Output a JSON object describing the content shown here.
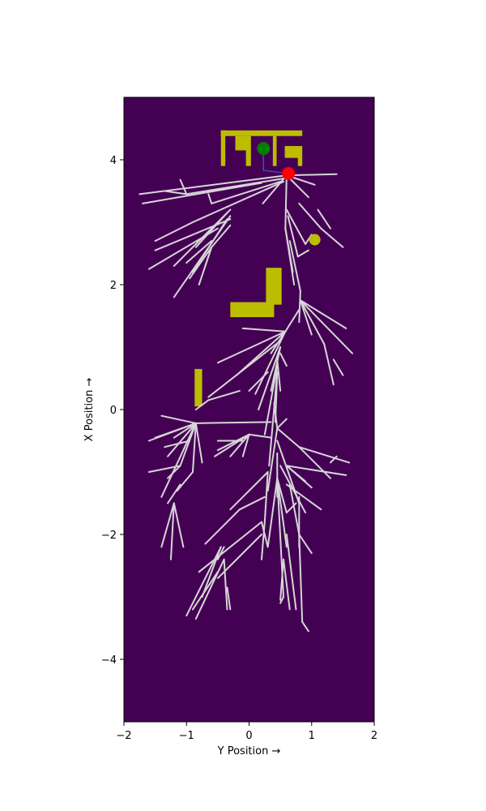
{
  "chart_data": {
    "type": "scatter",
    "title": "",
    "xlabel": "Y Position →",
    "ylabel": "X Position →",
    "xlim": [
      -2,
      2
    ],
    "ylim": [
      -5,
      5
    ],
    "xticks": [
      -2,
      -1,
      0,
      1,
      2
    ],
    "yticks": [
      -4,
      -2,
      0,
      2,
      4
    ],
    "xtick_labels": [
      "−2",
      "−1",
      "0",
      "1",
      "2"
    ],
    "ytick_labels": [
      "−4",
      "−2",
      "0",
      "2",
      "4"
    ],
    "grid": false,
    "legend": "none",
    "colors": {
      "background": "#440154",
      "obstacle": "#bdbd00",
      "tree_edge": "#d6d6d6",
      "path": "#3b4cc0",
      "start": "#008000",
      "goal": "#ff0000",
      "probe": "#bdbd00"
    },
    "obstacles": [
      {
        "x0": -0.45,
        "x1": 0.85,
        "y0": 4.38,
        "y1": 4.47
      },
      {
        "x0": -0.45,
        "x1": -0.38,
        "y0": 3.9,
        "y1": 4.47
      },
      {
        "x0": -0.22,
        "x1": -0.03,
        "y0": 4.15,
        "y1": 4.38
      },
      {
        "x0": -0.05,
        "x1": 0.03,
        "y0": 3.9,
        "y1": 4.38
      },
      {
        "x0": 0.38,
        "x1": 0.44,
        "y0": 3.9,
        "y1": 4.38
      },
      {
        "x0": 0.57,
        "x1": 0.8,
        "y0": 4.03,
        "y1": 4.22
      },
      {
        "x0": 0.78,
        "x1": 0.85,
        "y0": 3.9,
        "y1": 4.22
      },
      {
        "x0": 0.27,
        "x1": 0.52,
        "y0": 1.68,
        "y1": 2.27
      },
      {
        "x0": -0.3,
        "x1": 0.4,
        "y0": 1.48,
        "y1": 1.72
      },
      {
        "x0": -0.87,
        "x1": -0.75,
        "y0": 0.05,
        "y1": 0.65
      }
    ],
    "start": {
      "x": 0.23,
      "y": 4.18
    },
    "goal": {
      "x": 0.63,
      "y": 3.78
    },
    "probe": {
      "x": 1.05,
      "y": 2.72
    },
    "path": [
      [
        0.23,
        4.18
      ],
      [
        0.23,
        3.83
      ],
      [
        0.63,
        3.78
      ]
    ],
    "tree_edges": [
      [
        [
          0.6,
          3.75
        ],
        [
          1.4,
          3.77
        ]
      ],
      [
        [
          0.6,
          3.75
        ],
        [
          1.05,
          3.6
        ]
      ],
      [
        [
          0.6,
          3.75
        ],
        [
          0.95,
          3.4
        ]
      ],
      [
        [
          0.6,
          3.75
        ],
        [
          0.22,
          3.3
        ]
      ],
      [
        [
          0.6,
          3.75
        ],
        [
          -1.75,
          3.45
        ]
      ],
      [
        [
          0.2,
          3.63
        ],
        [
          -1.7,
          3.3
        ]
      ],
      [
        [
          0.55,
          3.7
        ],
        [
          -1.0,
          3.45
        ]
      ],
      [
        [
          -1.0,
          3.45
        ],
        [
          -1.1,
          3.68
        ]
      ],
      [
        [
          -1.0,
          3.45
        ],
        [
          -1.35,
          3.5
        ]
      ],
      [
        [
          0.5,
          3.65
        ],
        [
          -0.6,
          3.3
        ]
      ],
      [
        [
          -0.6,
          3.3
        ],
        [
          -0.65,
          3.45
        ]
      ],
      [
        [
          0.55,
          3.65
        ],
        [
          -0.9,
          3.0
        ]
      ],
      [
        [
          -0.9,
          3.0
        ],
        [
          -1.5,
          2.7
        ]
      ],
      [
        [
          -0.3,
          3.05
        ],
        [
          -1.5,
          2.55
        ]
      ],
      [
        [
          -0.5,
          2.9
        ],
        [
          -1.6,
          2.25
        ]
      ],
      [
        [
          -0.3,
          3.2
        ],
        [
          -1.2,
          2.3
        ]
      ],
      [
        [
          -0.3,
          3.1
        ],
        [
          -1.2,
          1.8
        ]
      ],
      [
        [
          -0.6,
          2.7
        ],
        [
          -1.0,
          2.35
        ]
      ],
      [
        [
          -0.35,
          3.05
        ],
        [
          -0.9,
          2.2
        ]
      ],
      [
        [
          -0.3,
          2.95
        ],
        [
          -0.6,
          2.6
        ]
      ],
      [
        [
          -0.6,
          2.6
        ],
        [
          -0.95,
          2.1
        ]
      ],
      [
        [
          -0.6,
          2.6
        ],
        [
          -0.7,
          2.3
        ]
      ],
      [
        [
          -0.6,
          2.6
        ],
        [
          -0.8,
          2.0
        ]
      ],
      [
        [
          -0.35,
          3.15
        ],
        [
          -0.85,
          2.6
        ]
      ],
      [
        [
          0.6,
          3.75
        ],
        [
          0.58,
          2.9
        ]
      ],
      [
        [
          0.58,
          2.9
        ],
        [
          0.7,
          2.2
        ]
      ],
      [
        [
          0.58,
          2.9
        ],
        [
          0.72,
          2.0
        ]
      ],
      [
        [
          0.6,
          3.2
        ],
        [
          0.9,
          2.65
        ]
      ],
      [
        [
          0.9,
          2.65
        ],
        [
          1.0,
          2.8
        ]
      ],
      [
        [
          0.62,
          3.1
        ],
        [
          0.78,
          2.45
        ]
      ],
      [
        [
          0.78,
          2.45
        ],
        [
          0.95,
          2.55
        ]
      ],
      [
        [
          0.8,
          3.3
        ],
        [
          1.15,
          2.9
        ]
      ],
      [
        [
          1.15,
          2.9
        ],
        [
          1.5,
          2.6
        ]
      ],
      [
        [
          1.1,
          3.2
        ],
        [
          1.3,
          2.9
        ]
      ],
      [
        [
          0.65,
          2.7
        ],
        [
          0.82,
          1.9
        ]
      ],
      [
        [
          0.82,
          1.9
        ],
        [
          0.8,
          1.4
        ]
      ],
      [
        [
          0.82,
          1.75
        ],
        [
          1.55,
          1.3
        ]
      ],
      [
        [
          0.82,
          1.75
        ],
        [
          1.0,
          1.2
        ]
      ],
      [
        [
          0.82,
          1.75
        ],
        [
          1.2,
          1.05
        ]
      ],
      [
        [
          0.82,
          1.75
        ],
        [
          1.65,
          0.9
        ]
      ],
      [
        [
          1.2,
          1.05
        ],
        [
          1.35,
          0.4
        ]
      ],
      [
        [
          1.35,
          0.8
        ],
        [
          1.5,
          0.55
        ]
      ],
      [
        [
          0.8,
          1.6
        ],
        [
          0.58,
          1.25
        ]
      ],
      [
        [
          0.58,
          1.25
        ],
        [
          -0.1,
          1.3
        ]
      ],
      [
        [
          0.58,
          1.25
        ],
        [
          -0.5,
          0.75
        ]
      ],
      [
        [
          0.58,
          1.25
        ],
        [
          -0.2,
          0.55
        ]
      ],
      [
        [
          0.58,
          1.25
        ],
        [
          0.1,
          0.25
        ]
      ],
      [
        [
          0.58,
          1.25
        ],
        [
          0.35,
          0.9
        ]
      ],
      [
        [
          0.5,
          1.1
        ],
        [
          -0.65,
          0.2
        ]
      ],
      [
        [
          0.5,
          1.0
        ],
        [
          0.15,
          0.0
        ]
      ],
      [
        [
          0.5,
          0.9
        ],
        [
          0.6,
          0.7
        ]
      ],
      [
        [
          0.5,
          1.0
        ],
        [
          0.35,
          0.3
        ]
      ],
      [
        [
          0.45,
          0.7
        ],
        [
          0.25,
          -0.4
        ]
      ],
      [
        [
          0.45,
          0.8
        ],
        [
          0.5,
          0.3
        ]
      ],
      [
        [
          0.45,
          0.6
        ],
        [
          0.32,
          -0.9
        ]
      ],
      [
        [
          0.45,
          0.6
        ],
        [
          0.42,
          -0.2
        ]
      ],
      [
        [
          0.3,
          0.6
        ],
        [
          0.0,
          0.3
        ]
      ],
      [
        [
          0.4,
          0.1
        ],
        [
          0.45,
          -0.3
        ]
      ],
      [
        [
          0.45,
          -0.3
        ],
        [
          0.6,
          -0.15
        ]
      ],
      [
        [
          0.45,
          -0.3
        ],
        [
          0.3,
          -1.3
        ]
      ],
      [
        [
          0.45,
          -0.3
        ],
        [
          0.8,
          -0.6
        ]
      ],
      [
        [
          0.8,
          -0.6
        ],
        [
          1.6,
          -0.85
        ]
      ],
      [
        [
          0.8,
          -0.6
        ],
        [
          1.3,
          -1.1
        ]
      ],
      [
        [
          0.6,
          -0.9
        ],
        [
          1.55,
          -1.05
        ]
      ],
      [
        [
          0.6,
          -0.9
        ],
        [
          1.0,
          -1.25
        ]
      ],
      [
        [
          0.6,
          -0.9
        ],
        [
          0.9,
          -1.15
        ]
      ],
      [
        [
          0.45,
          -0.5
        ],
        [
          0.8,
          -1.5
        ]
      ],
      [
        [
          0.5,
          -0.9
        ],
        [
          0.9,
          -1.65
        ]
      ],
      [
        [
          0.45,
          -0.7
        ],
        [
          0.45,
          -1.4
        ]
      ],
      [
        [
          1.3,
          -0.85
        ],
        [
          1.4,
          -0.75
        ]
      ],
      [
        [
          0.6,
          -1.2
        ],
        [
          1.15,
          -1.6
        ]
      ],
      [
        [
          0.45,
          -1.1
        ],
        [
          0.3,
          -2.2
        ]
      ],
      [
        [
          0.45,
          -1.1
        ],
        [
          0.6,
          -1.65
        ]
      ],
      [
        [
          0.6,
          -1.65
        ],
        [
          0.75,
          -1.5
        ]
      ],
      [
        [
          0.45,
          -1.1
        ],
        [
          0.6,
          -2.2
        ]
      ],
      [
        [
          0.35,
          -0.45
        ],
        [
          0.0,
          -0.4
        ]
      ],
      [
        [
          0.0,
          -0.4
        ],
        [
          -0.5,
          -0.65
        ]
      ],
      [
        [
          0.0,
          -0.4
        ],
        [
          -0.3,
          -0.75
        ]
      ],
      [
        [
          0.0,
          -0.4
        ],
        [
          -0.55,
          -0.75
        ]
      ],
      [
        [
          0.0,
          -0.4
        ],
        [
          -0.1,
          -0.75
        ]
      ],
      [
        [
          -0.1,
          -0.5
        ],
        [
          -0.5,
          -0.5
        ]
      ],
      [
        [
          0.3,
          -1.0
        ],
        [
          -0.3,
          -1.6
        ]
      ],
      [
        [
          0.3,
          -1.0
        ],
        [
          0.25,
          -1.8
        ]
      ],
      [
        [
          0.25,
          -1.8
        ],
        [
          0.2,
          -2.4
        ]
      ],
      [
        [
          0.25,
          -1.4
        ],
        [
          -0.15,
          -1.6
        ]
      ],
      [
        [
          -0.15,
          -1.6
        ],
        [
          -0.7,
          -2.15
        ]
      ],
      [
        [
          0.2,
          -1.8
        ],
        [
          -0.8,
          -2.6
        ]
      ],
      [
        [
          -0.45,
          -2.2
        ],
        [
          -1.0,
          -3.3
        ]
      ],
      [
        [
          -0.45,
          -2.2
        ],
        [
          -0.75,
          -3.0
        ]
      ],
      [
        [
          -0.4,
          -2.2
        ],
        [
          -0.5,
          -2.4
        ]
      ],
      [
        [
          -0.4,
          -2.4
        ],
        [
          -0.85,
          -3.35
        ]
      ],
      [
        [
          -0.4,
          -2.4
        ],
        [
          -0.35,
          -3.2
        ]
      ],
      [
        [
          -0.35,
          -2.85
        ],
        [
          -0.3,
          -3.2
        ]
      ],
      [
        [
          -0.5,
          -2.6
        ],
        [
          -0.9,
          -3.2
        ]
      ],
      [
        [
          0.2,
          -2.0
        ],
        [
          -0.5,
          -2.7
        ]
      ],
      [
        [
          0.2,
          -1.8
        ],
        [
          0.3,
          -2.2
        ]
      ],
      [
        [
          0.45,
          -1.1
        ],
        [
          0.55,
          -3.0
        ]
      ],
      [
        [
          0.55,
          -3.0
        ],
        [
          0.5,
          -3.1
        ]
      ],
      [
        [
          0.55,
          -2.4
        ],
        [
          0.5,
          -3.05
        ]
      ],
      [
        [
          0.55,
          -2.4
        ],
        [
          0.65,
          -3.2
        ]
      ],
      [
        [
          0.6,
          -2.0
        ],
        [
          0.75,
          -3.2
        ]
      ],
      [
        [
          0.65,
          -1.2
        ],
        [
          0.8,
          -2.0
        ]
      ],
      [
        [
          0.8,
          -2.0
        ],
        [
          0.85,
          -3.4
        ]
      ],
      [
        [
          0.85,
          -3.4
        ],
        [
          0.95,
          -3.55
        ]
      ],
      [
        [
          0.8,
          -2.0
        ],
        [
          1.0,
          -2.3
        ]
      ],
      [
        [
          0.8,
          -1.4
        ],
        [
          0.8,
          -2.2
        ]
      ],
      [
        [
          0.35,
          -0.2
        ],
        [
          -0.9,
          -0.22
        ]
      ],
      [
        [
          -0.85,
          -0.22
        ],
        [
          -1.4,
          -0.1
        ]
      ],
      [
        [
          -0.85,
          -0.22
        ],
        [
          -1.6,
          -0.5
        ]
      ],
      [
        [
          -0.85,
          -0.22
        ],
        [
          -1.3,
          -0.75
        ]
      ],
      [
        [
          -0.85,
          -0.22
        ],
        [
          -1.2,
          -0.45
        ]
      ],
      [
        [
          -0.85,
          -0.22
        ],
        [
          -0.75,
          -0.85
        ]
      ],
      [
        [
          -0.85,
          -0.22
        ],
        [
          -1.4,
          -1.4
        ]
      ],
      [
        [
          -0.85,
          -0.22
        ],
        [
          -1.1,
          -0.9
        ]
      ],
      [
        [
          -1.1,
          -0.9
        ],
        [
          -1.6,
          -1.0
        ]
      ],
      [
        [
          -1.1,
          -0.9
        ],
        [
          -1.3,
          -1.1
        ]
      ],
      [
        [
          -1.1,
          -1.2
        ],
        [
          -1.3,
          -1.5
        ]
      ],
      [
        [
          -1.2,
          -1.5
        ],
        [
          -1.25,
          -2.4
        ]
      ],
      [
        [
          -1.2,
          -1.5
        ],
        [
          -1.05,
          -2.2
        ]
      ],
      [
        [
          -1.2,
          -1.5
        ],
        [
          -1.4,
          -2.2
        ]
      ],
      [
        [
          -0.85,
          -0.22
        ],
        [
          -0.9,
          -1.0
        ]
      ],
      [
        [
          -0.9,
          -1.0
        ],
        [
          -1.15,
          -1.3
        ]
      ],
      [
        [
          -0.85,
          -0.22
        ],
        [
          -1.5,
          -0.45
        ]
      ],
      [
        [
          -0.85,
          -0.22
        ],
        [
          -1.05,
          -0.65
        ]
      ],
      [
        [
          -0.95,
          -0.5
        ],
        [
          -1.35,
          -0.6
        ]
      ],
      [
        [
          -0.15,
          0.3
        ],
        [
          -0.65,
          0.15
        ]
      ],
      [
        [
          -0.65,
          0.15
        ],
        [
          -0.85,
          0.0
        ]
      ]
    ]
  }
}
